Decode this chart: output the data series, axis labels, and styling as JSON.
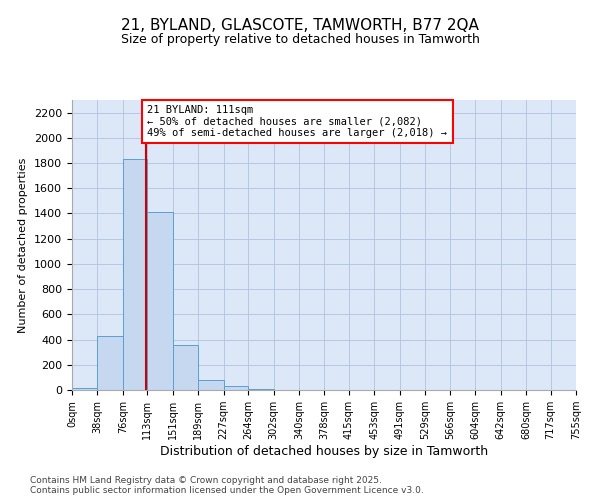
{
  "title": "21, BYLAND, GLASCOTE, TAMWORTH, B77 2QA",
  "subtitle": "Size of property relative to detached houses in Tamworth",
  "xlabel": "Distribution of detached houses by size in Tamworth",
  "ylabel": "Number of detached properties",
  "bar_color": "#c5d8f0",
  "bar_edge_color": "#5a9fd4",
  "grid_color": "#b0c4de",
  "bg_color": "#dce8f8",
  "annotation_line1": "21 BYLAND: 111sqm",
  "annotation_line2": "← 50% of detached houses are smaller (2,082)",
  "annotation_line3": "49% of semi-detached houses are larger (2,018) →",
  "vline_x": 111,
  "vline_color": "#cc0000",
  "ylim": [
    0,
    2300
  ],
  "yticks": [
    0,
    200,
    400,
    600,
    800,
    1000,
    1200,
    1400,
    1600,
    1800,
    2000,
    2200
  ],
  "bins": [
    0,
    38,
    76,
    113,
    151,
    189,
    227,
    264,
    302,
    340,
    378,
    415,
    453,
    491,
    529,
    566,
    604,
    642,
    680,
    717,
    755
  ],
  "counts": [
    15,
    425,
    1830,
    1415,
    355,
    78,
    30,
    10,
    0,
    0,
    0,
    0,
    0,
    0,
    0,
    0,
    0,
    0,
    0,
    0
  ],
  "footer": "Contains HM Land Registry data © Crown copyright and database right 2025.\nContains public sector information licensed under the Open Government Licence v3.0.",
  "footer_fontsize": 6.5,
  "title_fontsize": 11,
  "subtitle_fontsize": 9,
  "ylabel_fontsize": 8,
  "xlabel_fontsize": 9,
  "ytick_fontsize": 8,
  "xtick_fontsize": 7
}
